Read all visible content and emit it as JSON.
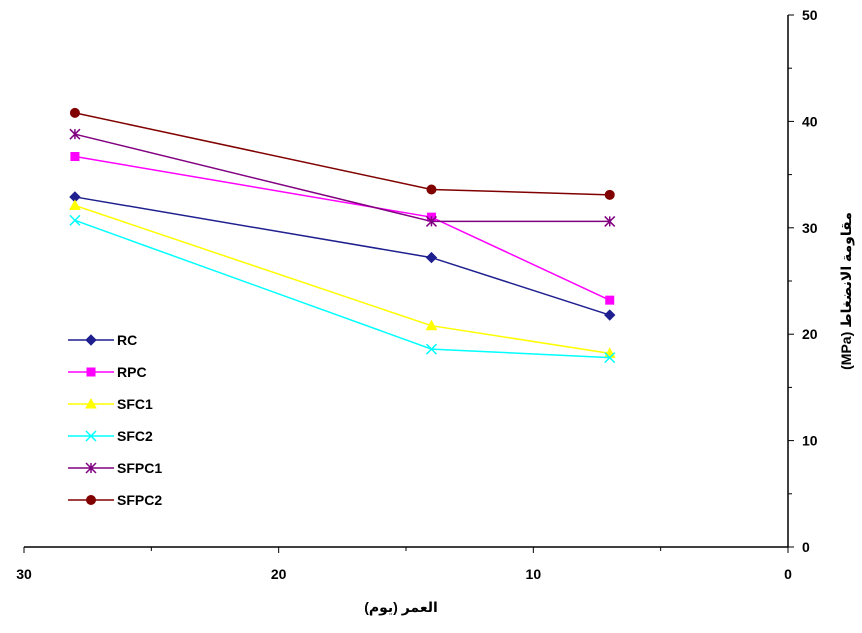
{
  "chart_data": {
    "type": "line",
    "title": "",
    "xlabel": "العمر (يوم)",
    "ylabel": "مقاومة الانضغاط (MPa)",
    "x_reversed": true,
    "xlim": [
      0,
      30
    ],
    "ylim": [
      0,
      50
    ],
    "x_ticks": [
      30,
      20,
      10,
      0
    ],
    "y_ticks": [
      0,
      10,
      20,
      30,
      40,
      50
    ],
    "y_axis_side": "right",
    "grid": false,
    "legend_position": "left",
    "x": [
      28,
      14,
      7
    ],
    "series": [
      {
        "name": "RC",
        "marker": "diamond",
        "color": "#1f1f8f",
        "values": [
          32.9,
          27.2,
          21.8
        ]
      },
      {
        "name": "RPC",
        "marker": "square",
        "color": "#ff00ff",
        "values": [
          36.7,
          31.0,
          23.2
        ]
      },
      {
        "name": "SFC1",
        "marker": "triangle",
        "color": "#ffff00",
        "values": [
          32.1,
          20.8,
          18.2
        ]
      },
      {
        "name": "SFC2",
        "marker": "x",
        "color": "#00ffff",
        "values": [
          30.7,
          18.6,
          17.8
        ]
      },
      {
        "name": "SFPC1",
        "marker": "star",
        "color": "#800080",
        "values": [
          38.8,
          30.6,
          30.6
        ]
      },
      {
        "name": "SFPC2",
        "marker": "circle",
        "color": "#800000",
        "values": [
          40.8,
          33.6,
          33.1
        ]
      }
    ]
  }
}
